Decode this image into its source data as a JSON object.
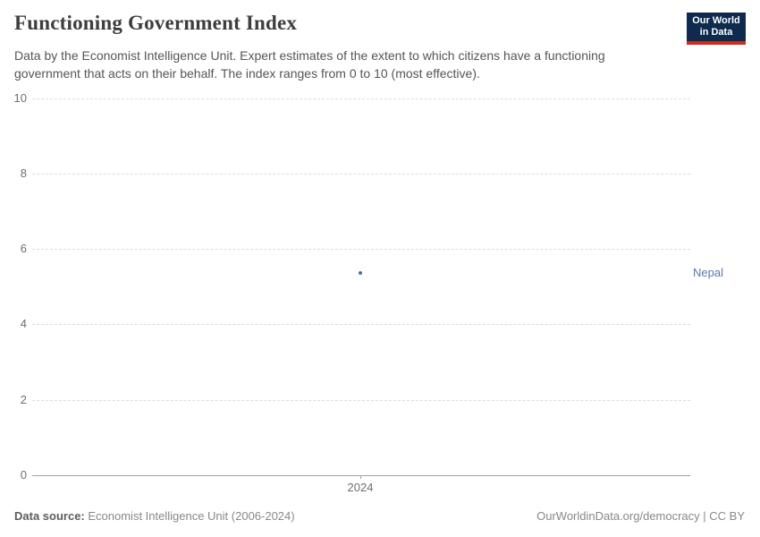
{
  "header": {
    "title": "Functioning Government Index",
    "subtitle_lines": [
      "Data by the Economist Intelligence Unit. Expert estimates of the extent to which citizens have a functioning",
      "government that acts on their behalf. The index ranges from 0 to 10 (most effective)."
    ]
  },
  "logo": {
    "line1": "Our World",
    "line2": "in Data",
    "bg_color": "#0e2a4e",
    "accent_color": "#cc2d1f"
  },
  "chart_data": {
    "type": "scatter",
    "title": "Functioning Government Index",
    "x": [
      2024
    ],
    "xticks": [
      "2024"
    ],
    "yticks": [
      0,
      2,
      4,
      6,
      8,
      10
    ],
    "ylim": [
      0,
      10
    ],
    "xlabel": "",
    "ylabel": "",
    "grid": "dashed-horizontal",
    "legend_position": "right-entity-label",
    "series": [
      {
        "name": "Nepal",
        "color": "#4c6a9c",
        "label_color": "#5878a8",
        "points": [
          {
            "x": 2024,
            "y": 5.36
          }
        ]
      }
    ]
  },
  "footer": {
    "source_label": "Data source:",
    "source_text": " Economist Intelligence Unit (2006-2024)",
    "license_text": "OurWorldinData.org/democracy | CC BY"
  }
}
